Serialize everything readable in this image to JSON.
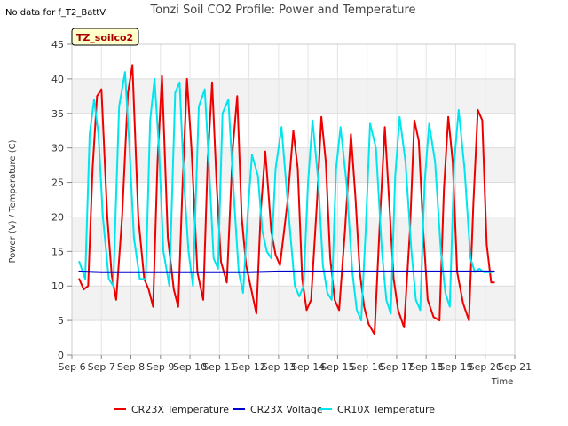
{
  "notice": "No data for f_T2_BattV",
  "badge": "TZ_soilco2",
  "chart_data": {
    "type": "line",
    "title": "Tonzi Soil CO2 Profile: Power and Temperature",
    "xlabel": "Time",
    "ylabel": "Power (V) / Temperature (C)",
    "xlim": [
      6,
      21
    ],
    "ylim": [
      0,
      45
    ],
    "x_ticks": [
      6,
      7,
      8,
      9,
      10,
      11,
      12,
      13,
      14,
      15,
      16,
      17,
      18,
      19,
      20,
      21
    ],
    "x_tick_labels": [
      "Sep 6",
      "Sep 7",
      "Sep 8",
      "Sep 9",
      "Sep 10",
      "Sep 11",
      "Sep 12",
      "Sep 13",
      "Sep 14",
      "Sep 15",
      "Sep 16",
      "Sep 17",
      "Sep 18",
      "Sep 19",
      "Sep 20",
      "Sep 21"
    ],
    "y_ticks": [
      0,
      5,
      10,
      15,
      20,
      25,
      30,
      35,
      40,
      45
    ],
    "grid": true,
    "legend_position": "bottom",
    "series": [
      {
        "name": "CR23X Temperature",
        "color": "#ee0000",
        "x": [
          6.25,
          6.4,
          6.55,
          6.7,
          6.85,
          7.0,
          7.2,
          7.35,
          7.5,
          7.7,
          7.9,
          8.05,
          8.25,
          8.45,
          8.6,
          8.75,
          8.9,
          9.05,
          9.25,
          9.45,
          9.6,
          9.75,
          9.9,
          10.05,
          10.25,
          10.45,
          10.6,
          10.75,
          10.9,
          11.05,
          11.25,
          11.45,
          11.6,
          11.75,
          11.9,
          12.05,
          12.25,
          12.4,
          12.55,
          12.65,
          12.75,
          12.9,
          13.05,
          13.3,
          13.5,
          13.65,
          13.8,
          13.95,
          14.1,
          14.3,
          14.45,
          14.6,
          14.75,
          14.9,
          15.05,
          15.25,
          15.45,
          15.6,
          15.75,
          15.9,
          16.05,
          16.25,
          16.45,
          16.6,
          16.75,
          16.9,
          17.05,
          17.25,
          17.45,
          17.6,
          17.75,
          17.9,
          18.05,
          18.25,
          18.45,
          18.6,
          18.75,
          18.9,
          19.05,
          19.25,
          19.45,
          19.6,
          19.75,
          19.9,
          20.05,
          20.2,
          20.3
        ],
        "y": [
          11,
          9.5,
          10,
          27,
          37.5,
          38.5,
          20,
          11.5,
          8,
          20,
          38,
          42,
          20,
          11,
          9.5,
          7,
          28,
          40.5,
          17,
          9.5,
          7,
          25,
          40,
          30,
          12,
          8,
          28,
          39.5,
          25,
          13.5,
          10.5,
          30,
          37.5,
          20,
          13,
          10,
          6,
          21,
          29.5,
          24,
          18,
          14.5,
          13,
          22,
          32.5,
          27,
          11,
          6.5,
          8,
          22,
          34.5,
          28,
          14,
          8,
          6.5,
          18,
          32,
          23,
          12,
          7,
          4.5,
          3,
          21,
          33,
          22,
          11,
          6.5,
          4,
          18,
          34,
          31,
          18,
          8,
          5.5,
          5,
          24,
          34.5,
          28,
          12,
          7.5,
          5,
          22,
          35.5,
          34,
          16,
          10.5,
          10.5
        ]
      },
      {
        "name": "CR23X Voltage",
        "color": "#0000cc",
        "x": [
          6.25,
          7.0,
          8.0,
          9.0,
          10.0,
          11.0,
          12.0,
          13.0,
          14.0,
          15.0,
          16.0,
          17.0,
          18.0,
          19.0,
          20.0,
          20.3
        ],
        "y": [
          12.1,
          12.0,
          12.0,
          12.0,
          12.0,
          12.0,
          12.0,
          12.1,
          12.1,
          12.1,
          12.1,
          12.1,
          12.1,
          12.1,
          12.1,
          12.1
        ]
      },
      {
        "name": "CR10X Temperature",
        "color": "#00e5ee",
        "x": [
          6.25,
          6.45,
          6.6,
          6.75,
          6.9,
          7.05,
          7.25,
          7.4,
          7.6,
          7.8,
          7.95,
          8.1,
          8.3,
          8.5,
          8.65,
          8.8,
          8.95,
          9.1,
          9.3,
          9.5,
          9.65,
          9.8,
          9.95,
          10.1,
          10.3,
          10.5,
          10.65,
          10.8,
          10.95,
          11.1,
          11.3,
          11.5,
          11.65,
          11.8,
          11.95,
          12.1,
          12.3,
          12.45,
          12.6,
          12.75,
          12.9,
          13.1,
          13.35,
          13.55,
          13.7,
          13.85,
          14.0,
          14.15,
          14.35,
          14.5,
          14.65,
          14.8,
          14.95,
          15.1,
          15.3,
          15.5,
          15.65,
          15.8,
          15.95,
          16.1,
          16.3,
          16.5,
          16.65,
          16.8,
          16.95,
          17.1,
          17.3,
          17.5,
          17.65,
          17.8,
          17.95,
          18.1,
          18.3,
          18.5,
          18.65,
          18.8,
          18.95,
          19.1,
          19.3,
          19.5,
          19.65,
          19.8,
          19.95,
          20.1,
          20.25
        ],
        "y": [
          13.5,
          11,
          32,
          37,
          32,
          20,
          11,
          10,
          36,
          41,
          30,
          17,
          11,
          11,
          34,
          40,
          30,
          15,
          10,
          38,
          39.5,
          25,
          15,
          10,
          36,
          38.5,
          27,
          14,
          12.5,
          35,
          37,
          22,
          12,
          9,
          20,
          29,
          26,
          18,
          15,
          14,
          27,
          33,
          20,
          10,
          8.5,
          10,
          25,
          34,
          25,
          13,
          9,
          8,
          27,
          33,
          25,
          12,
          6.5,
          5,
          18,
          33.5,
          30,
          15,
          8,
          6,
          26,
          34.5,
          28,
          15,
          8,
          6.5,
          25,
          33.5,
          28,
          15,
          9,
          7,
          28,
          35.5,
          27,
          14,
          12,
          12.5,
          12,
          12,
          12
        ]
      }
    ]
  }
}
